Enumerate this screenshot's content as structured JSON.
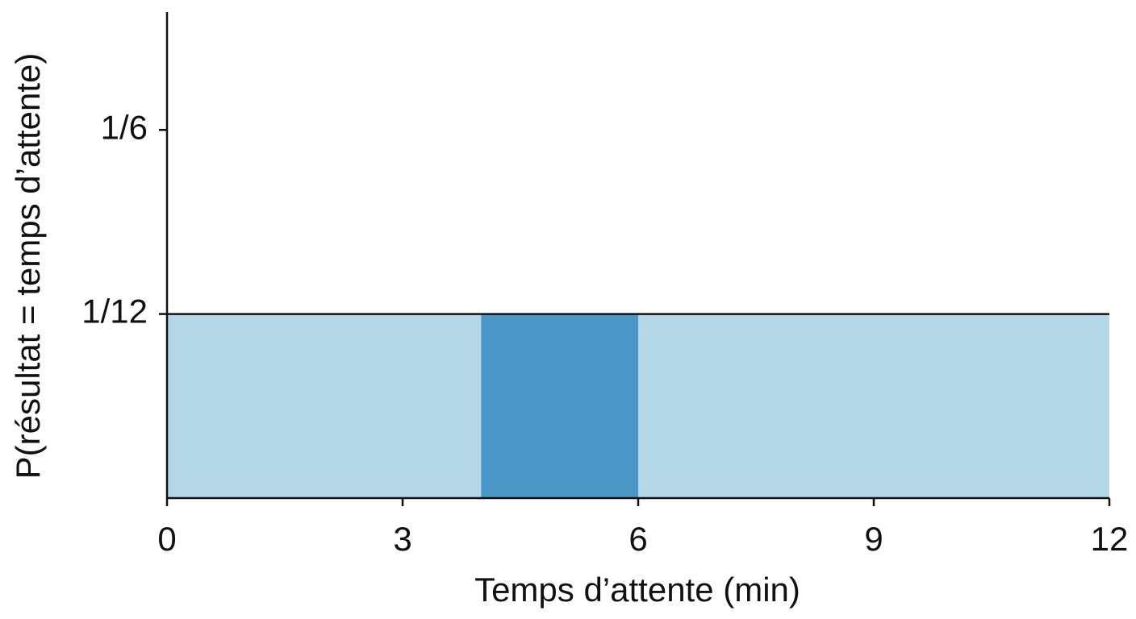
{
  "chart_data": {
    "type": "histogram",
    "x_label": "Temps d’attente (min)",
    "y_label": "P(résultat = temps d’attente)",
    "bins": [
      0,
      4,
      6,
      12
    ],
    "values": [
      0.08333,
      0.08333,
      0.08333
    ],
    "colors": [
      "#b3d7e6",
      "#4a96c6",
      "#b3d7e6"
    ],
    "xlim": [
      0,
      12
    ],
    "xticks": [
      0,
      3,
      6,
      9,
      12
    ],
    "ylim": [
      0,
      0.22
    ],
    "yticks": [
      {
        "value": 0.08333,
        "label": "1/12"
      },
      {
        "value": 0.16667,
        "label": "1/6"
      }
    ],
    "grid": false
  }
}
